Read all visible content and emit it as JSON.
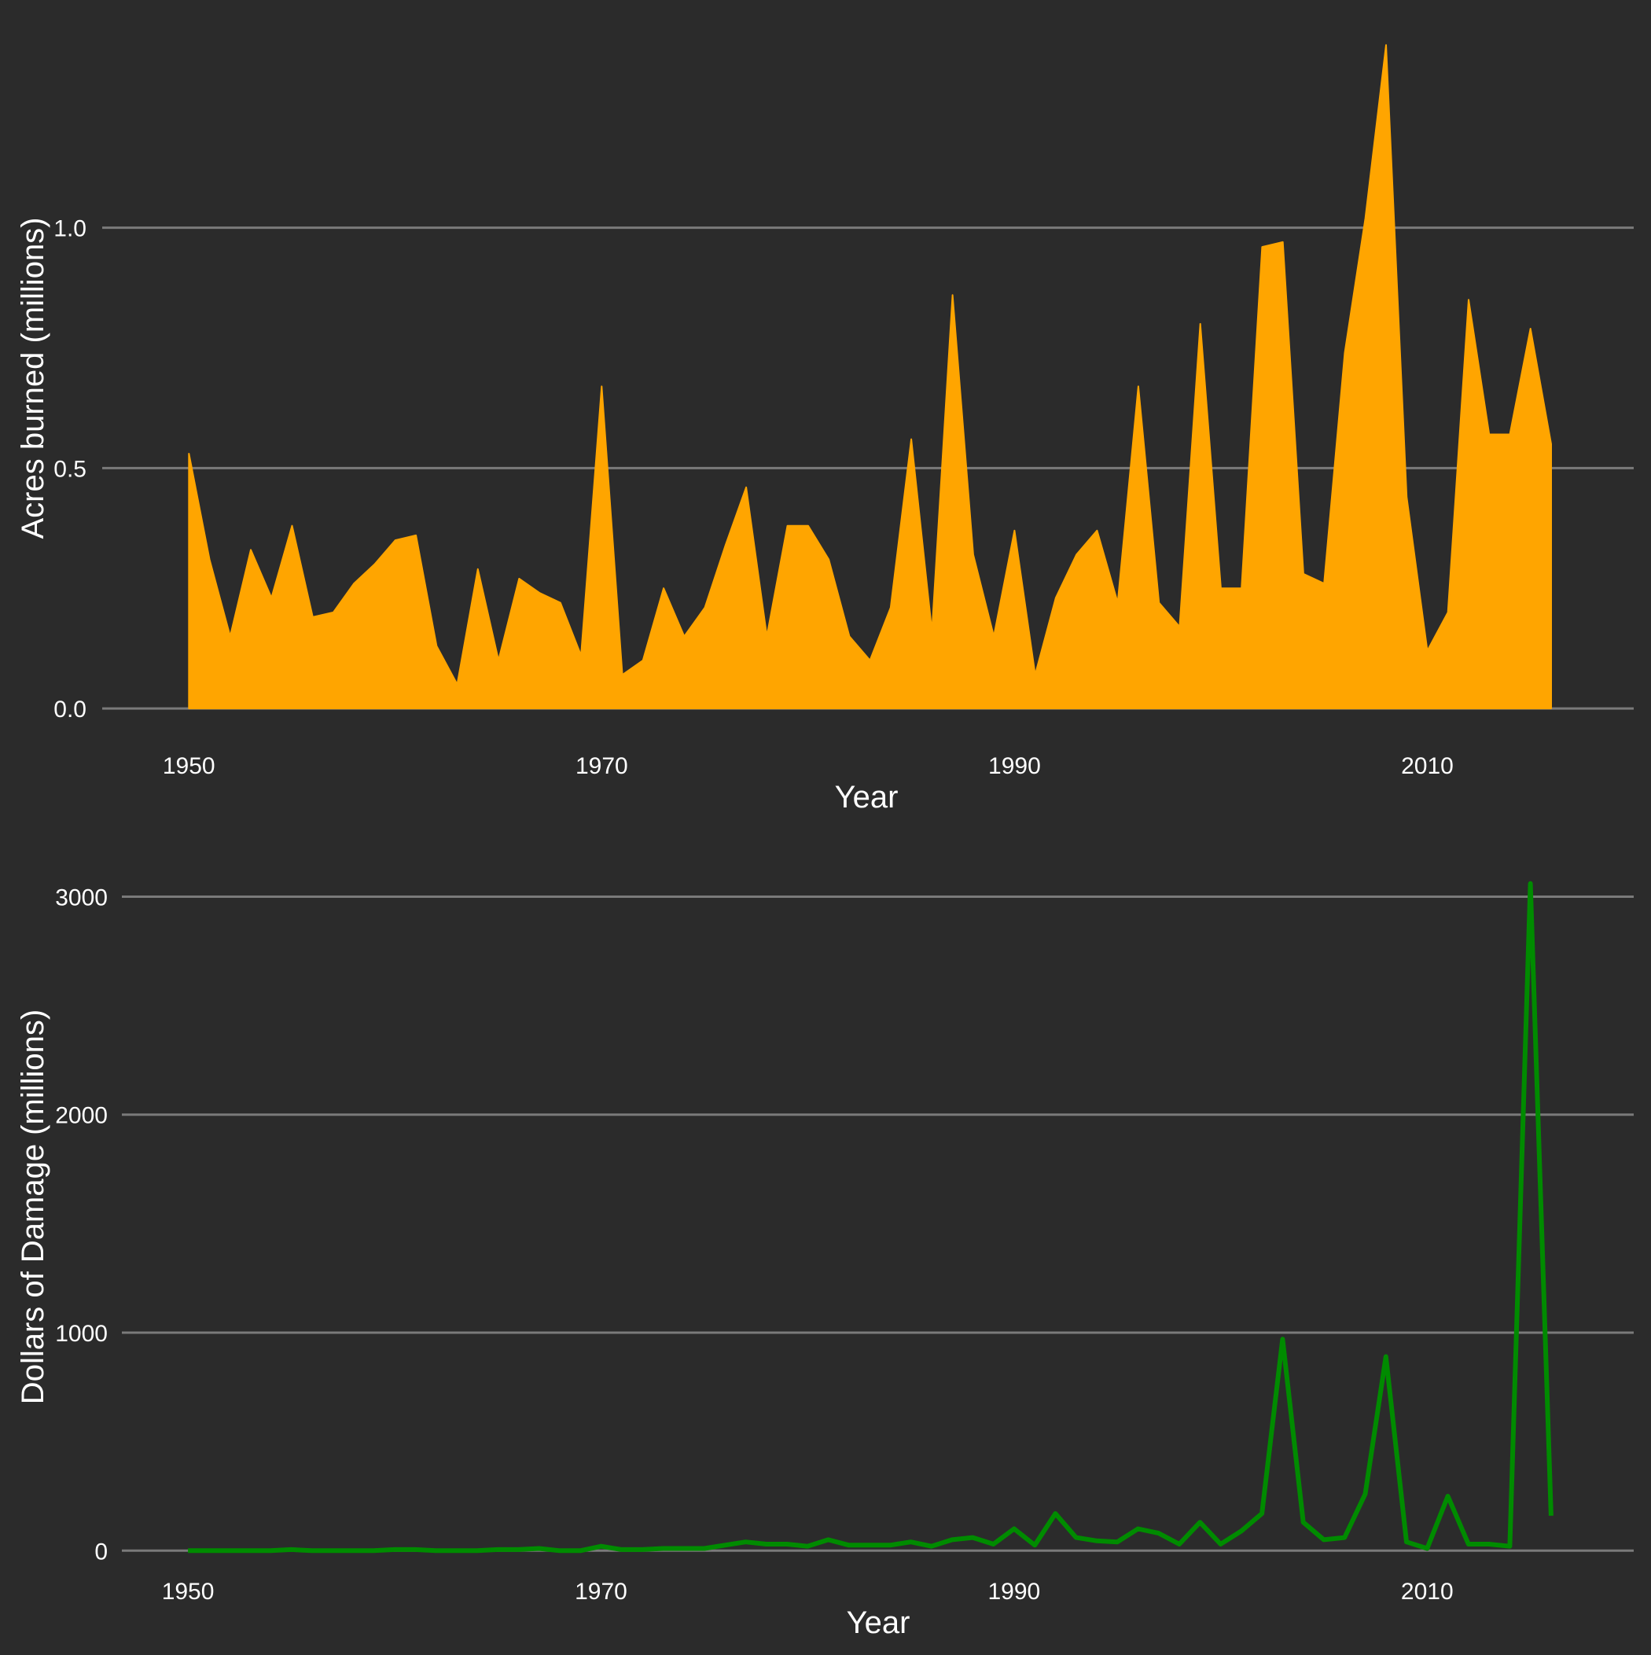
{
  "colors": {
    "background": "#2b2b2b",
    "grid": "#7a7a7a",
    "text": "#ffffff",
    "area_fill": "#FFA500",
    "line_stroke": "#008B00"
  },
  "chart_data": [
    {
      "type": "area",
      "xlabel": "Year",
      "ylabel": "Acres burned (millions)",
      "xlim": [
        1945.8,
        2020
      ],
      "ylim": [
        -0.08,
        1.4
      ],
      "x_ticks": [
        1950,
        1970,
        1990,
        2010
      ],
      "x_tick_labels": [
        "1950",
        "1970",
        "1990",
        "2010"
      ],
      "y_ticks": [
        0,
        0.5,
        1
      ],
      "y_tick_labels": [
        "0.0",
        "0.5",
        "1.0"
      ],
      "grid": true,
      "legend": "none",
      "series": [
        {
          "x": [
            1950,
            1951,
            1952,
            1953,
            1954,
            1955,
            1956,
            1957,
            1958,
            1959,
            1960,
            1961,
            1962,
            1963,
            1964,
            1965,
            1966,
            1967,
            1968,
            1969,
            1970,
            1971,
            1972,
            1973,
            1974,
            1975,
            1976,
            1977,
            1978,
            1979,
            1980,
            1981,
            1982,
            1983,
            1984,
            1985,
            1986,
            1987,
            1988,
            1989,
            1990,
            1991,
            1992,
            1993,
            1994,
            1995,
            1996,
            1997,
            1998,
            1999,
            2000,
            2001,
            2002,
            2003,
            2004,
            2005,
            2006,
            2007,
            2008,
            2009,
            2010,
            2011,
            2012,
            2013,
            2014,
            2015,
            2016
          ],
          "values": [
            0.53,
            0.31,
            0.15,
            0.33,
            0.23,
            0.38,
            0.19,
            0.2,
            0.26,
            0.3,
            0.35,
            0.36,
            0.13,
            0.05,
            0.29,
            0.1,
            0.27,
            0.24,
            0.22,
            0.11,
            0.67,
            0.07,
            0.1,
            0.25,
            0.15,
            0.21,
            0.34,
            0.46,
            0.15,
            0.38,
            0.38,
            0.31,
            0.15,
            0.1,
            0.21,
            0.56,
            0.16,
            0.86,
            0.32,
            0.15,
            0.37,
            0.07,
            0.23,
            0.32,
            0.37,
            0.22,
            0.67,
            0.22,
            0.17,
            0.8,
            0.25,
            0.25,
            0.96,
            0.97,
            0.28,
            0.26,
            0.74,
            1.02,
            1.38,
            0.44,
            0.12,
            0.2,
            0.85,
            0.57,
            0.57,
            0.79,
            0.55
          ]
        }
      ]
    },
    {
      "type": "line",
      "xlabel": "Year",
      "ylabel": "Dollars of Damage (millions)",
      "xlim": [
        1946.8,
        2020
      ],
      "ylim": [
        -100,
        3200
      ],
      "x_ticks": [
        1950,
        1970,
        1990,
        2010
      ],
      "x_tick_labels": [
        "1950",
        "1970",
        "1990",
        "2010"
      ],
      "y_ticks": [
        0,
        1000,
        2000,
        3000
      ],
      "y_tick_labels": [
        "0",
        "1000",
        "2000",
        "3000"
      ],
      "grid": true,
      "legend": "none",
      "series": [
        {
          "x": [
            1950,
            1951,
            1952,
            1953,
            1954,
            1955,
            1956,
            1957,
            1958,
            1959,
            1960,
            1961,
            1962,
            1963,
            1964,
            1965,
            1966,
            1967,
            1968,
            1969,
            1970,
            1971,
            1972,
            1973,
            1974,
            1975,
            1976,
            1977,
            1978,
            1979,
            1980,
            1981,
            1982,
            1983,
            1984,
            1985,
            1986,
            1987,
            1988,
            1989,
            1990,
            1991,
            1992,
            1993,
            1994,
            1995,
            1996,
            1997,
            1998,
            1999,
            2000,
            2001,
            2002,
            2003,
            2004,
            2005,
            2006,
            2007,
            2008,
            2009,
            2010,
            2011,
            2012,
            2013,
            2014,
            2015,
            2016
          ],
          "values": [
            0,
            0,
            0,
            0,
            0,
            5,
            0,
            0,
            0,
            0,
            5,
            5,
            0,
            0,
            0,
            5,
            5,
            10,
            0,
            0,
            20,
            5,
            5,
            10,
            10,
            10,
            25,
            40,
            30,
            30,
            20,
            50,
            25,
            25,
            25,
            40,
            20,
            50,
            60,
            30,
            100,
            25,
            170,
            60,
            45,
            40,
            100,
            80,
            30,
            130,
            30,
            90,
            170,
            970,
            130,
            50,
            60,
            260,
            890,
            40,
            10,
            250,
            30,
            30,
            20,
            3060,
            160
          ]
        }
      ]
    }
  ]
}
